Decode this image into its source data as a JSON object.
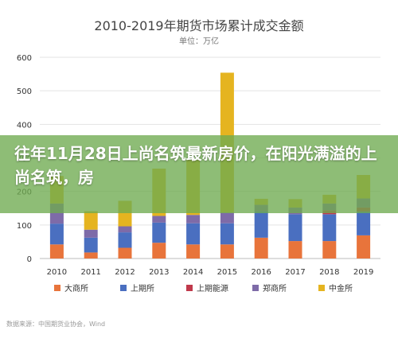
{
  "overlay": {
    "headline": "往年11月28日上尚名筑最新房价，在阳光满溢的上尚名筑，房"
  },
  "source_text": "数据来源：中国期货业协会，Wind",
  "chart_data": {
    "type": "bar",
    "stacked": true,
    "title": "2010-2019年期货市场累计成交金额",
    "subtitle": "单位：万亿",
    "categories": [
      "2010",
      "2011",
      "2012",
      "2013",
      "2014",
      "2015",
      "2016",
      "2017",
      "2018",
      "2019"
    ],
    "ylim": [
      0,
      600
    ],
    "yticks": [
      0,
      100,
      200,
      300,
      400,
      500,
      600
    ],
    "grid": true,
    "legend_position": "bottom",
    "series": [
      {
        "name": "大商所",
        "color": "#E8743B",
        "values": [
          42,
          18,
          32,
          47,
          42,
          42,
          62,
          52,
          52,
          69
        ]
      },
      {
        "name": "上期所",
        "color": "#4A6FC0",
        "values": [
          62,
          44,
          46,
          60,
          63,
          63,
          78,
          80,
          80,
          71
        ]
      },
      {
        "name": "上期能源",
        "color": "#C0394B",
        "values": [
          0,
          0,
          0,
          0,
          0,
          0,
          0,
          0,
          12,
          12
        ]
      },
      {
        "name": "郑商所",
        "color": "#7E6BA8",
        "values": [
          60,
          24,
          18,
          20,
          25,
          32,
          20,
          20,
          20,
          27
        ]
      },
      {
        "name": "中金所",
        "color": "#E5B420",
        "values": [
          82,
          55,
          76,
          141,
          164,
          417,
          18,
          25,
          26,
          70
        ]
      }
    ]
  }
}
